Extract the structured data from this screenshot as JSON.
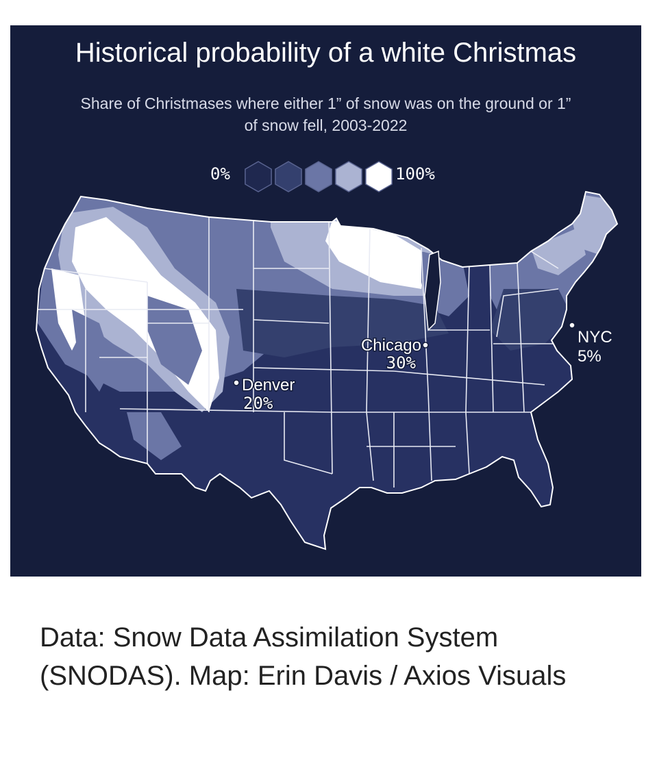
{
  "title": "Historical probability of a white Christmas",
  "subtitle": "Share of Christmases where either 1” of snow was on the ground or 1” of snow fell, 2003-2022",
  "legend": {
    "min_label": "0%",
    "max_label": "100%",
    "colors": [
      "#1f284f",
      "#34406e",
      "#6b76a6",
      "#abb3d2",
      "#ffffff"
    ]
  },
  "cities": [
    {
      "name": "Chicago",
      "value": "30%"
    },
    {
      "name": "Denver",
      "value": "20%"
    },
    {
      "name": "NYC",
      "value": "5%"
    }
  ],
  "source": "Data: Snow Data Assimilation System (SNODAS). Map: Erin Davis / Axios Visuals"
}
